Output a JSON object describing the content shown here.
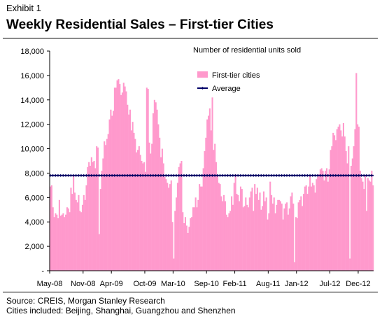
{
  "header": {
    "exhibit": "Exhibit 1",
    "title": "Weekly Residential Sales – First-tier Cities"
  },
  "footer": {
    "source": "Source: CREIS, Morgan Stanley Research",
    "cities": "Cities included: Beijing, Shanghai, Guangzhou and Shenzhen"
  },
  "chart_data": {
    "type": "bar",
    "subtitle": "Number of residential units sold",
    "ylim": [
      0,
      18000
    ],
    "yticks": [
      0,
      2000,
      4000,
      6000,
      8000,
      10000,
      12000,
      14000,
      16000,
      18000
    ],
    "ytick_labels": [
      "-",
      "2,000",
      "4,000",
      "6,000",
      "8,000",
      "10,000",
      "12,000",
      "14,000",
      "16,000",
      "18,000"
    ],
    "xtick_labels": [
      "May-08",
      "Nov-08",
      "Apr-09",
      "Oct-09",
      "Mar-10",
      "Sep-10",
      "Feb-11",
      "Aug-11",
      "Jan-12",
      "Jul-12",
      "Dec-12"
    ],
    "xtick_week_index": [
      0,
      26,
      48,
      74,
      96,
      122,
      144,
      170,
      192,
      218,
      240
    ],
    "legend_position": "top-right",
    "series": [
      {
        "name": "First-tier cities",
        "color": "#ff99cc",
        "type": "bar",
        "values": [
          6900,
          7000,
          5200,
          4400,
          4700,
          4600,
          4300,
          5800,
          4500,
          4600,
          4700,
          4400,
          4600,
          5200,
          5100,
          4800,
          6800,
          6300,
          7800,
          6400,
          5800,
          5600,
          6200,
          4900,
          4800,
          5400,
          6200,
          5800,
          7000,
          8500,
          8900,
          8600,
          9300,
          8900,
          9000,
          8400,
          10200,
          10100,
          3000,
          6700,
          8200,
          9200,
          10600,
          10300,
          10800,
          11200,
          12400,
          13200,
          12700,
          13100,
          15000,
          15000,
          15600,
          15700,
          15300,
          14400,
          14600,
          15400,
          15100,
          14700,
          13600,
          12800,
          13200,
          11500,
          12200,
          11300,
          10800,
          9700,
          9900,
          10200,
          9500,
          9000,
          8800,
          8900,
          8100,
          15000,
          14900,
          10500,
          9600,
          10400,
          12900,
          14000,
          13800,
          13200,
          12000,
          10900,
          9300,
          10000,
          8800,
          7700,
          7500,
          7200,
          6800,
          7100,
          7400,
          4000,
          1000,
          4900,
          6000,
          7200,
          8500,
          8800,
          9000,
          4800,
          3900,
          4400,
          3700,
          3100,
          3600,
          4300,
          4400,
          5200,
          5200,
          6000,
          5200,
          5800,
          7100,
          6900,
          6900,
          8400,
          9800,
          10900,
          12400,
          12700,
          13300,
          11500,
          14200,
          9900,
          10400,
          8900,
          7800,
          7200,
          7100,
          6100,
          5700,
          6200,
          5700,
          4600,
          4400,
          4700,
          4900,
          6100,
          5400,
          7200,
          7900,
          6300,
          6200,
          5700,
          6900,
          6700,
          5200,
          5300,
          6000,
          5400,
          5200,
          6000,
          6500,
          6800,
          4900,
          7100,
          6300,
          6800,
          5800,
          6400,
          5000,
          5300,
          6500,
          5700,
          6000,
          4200,
          4700,
          7300,
          6200,
          5500,
          6000,
          4700,
          5400,
          5800,
          5800,
          5700,
          5500,
          4200,
          5100,
          5500,
          5600,
          4600,
          5100,
          6100,
          6400,
          5500,
          700,
          4400,
          4300,
          5600,
          5800,
          6100,
          5300,
          6300,
          6900,
          7000,
          6300,
          6900,
          7800,
          6900,
          7200,
          7000,
          6400,
          7500,
          7700,
          7900,
          8300,
          8400,
          8200,
          7400,
          8200,
          8400,
          7300,
          8300,
          9900,
          10200,
          11300,
          11100,
          10700,
          11600,
          11800,
          12000,
          11500,
          11000,
          12100,
          11000,
          9800,
          8800,
          10200,
          1000,
          8600,
          9200,
          10200,
          11600,
          16200,
          12000,
          11800,
          8200,
          7600,
          7300,
          6700,
          7800,
          4900,
          7600,
          7400,
          7300,
          8200,
          7000
        ]
      },
      {
        "name": "Average",
        "color": "#000066",
        "type": "line",
        "value": 7800
      }
    ]
  }
}
